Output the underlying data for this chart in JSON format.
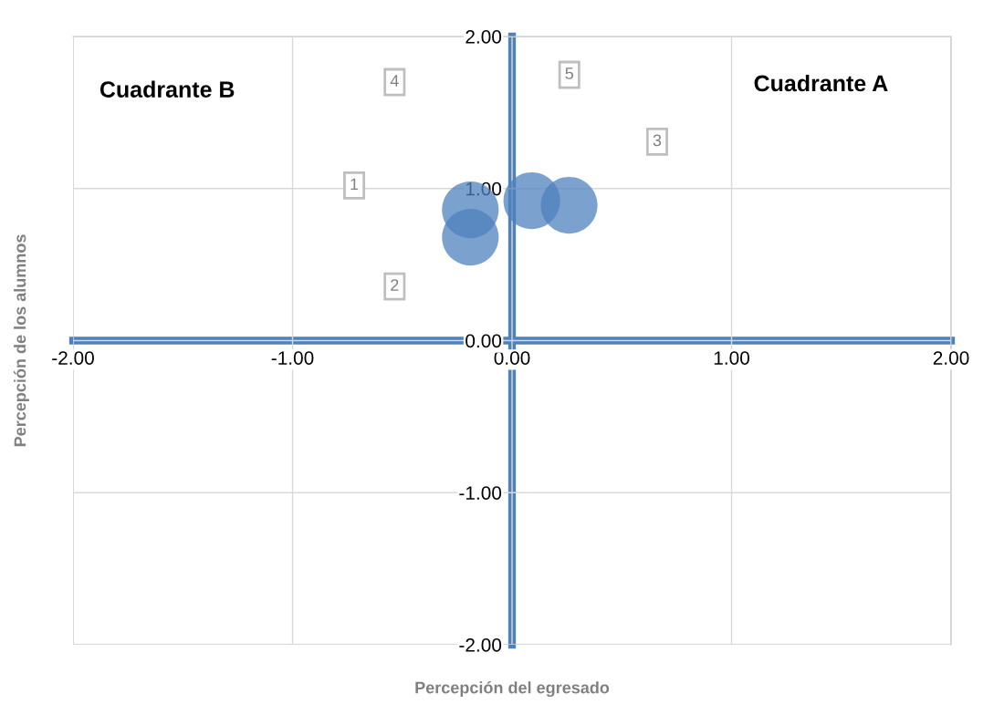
{
  "chart_data": {
    "type": "bubble",
    "xlabel": "Percepción del egresado",
    "ylabel": "Percepción de los alumnos",
    "x": [
      -0.19,
      -0.19,
      0.09,
      0.26
    ],
    "values": [
      0.86,
      0.68,
      0.92,
      0.89
    ],
    "sizes": [
      1,
      1,
      1,
      1
    ],
    "color": "#4f81bd",
    "xlim": [
      -2,
      2
    ],
    "ylim": [
      -2,
      2
    ],
    "xticks": [
      {
        "value": -2,
        "label": "-2.00"
      },
      {
        "value": -1,
        "label": "-1.00"
      },
      {
        "value": 0,
        "label": "0.00"
      },
      {
        "value": 1,
        "label": "1.00"
      },
      {
        "value": 2,
        "label": "2.00"
      }
    ],
    "yticks": [
      {
        "value": -2,
        "label": "-2.00"
      },
      {
        "value": -1,
        "label": "-1.00"
      },
      {
        "value": 0,
        "label": "0.00"
      },
      {
        "value": 1,
        "label": "1.00"
      },
      {
        "value": 2,
        "label": "2.00"
      }
    ],
    "grid": true,
    "annotations": [
      "Cuadrante B",
      "Cuadrante A",
      "1",
      "2",
      "3",
      "4",
      "5"
    ]
  }
}
